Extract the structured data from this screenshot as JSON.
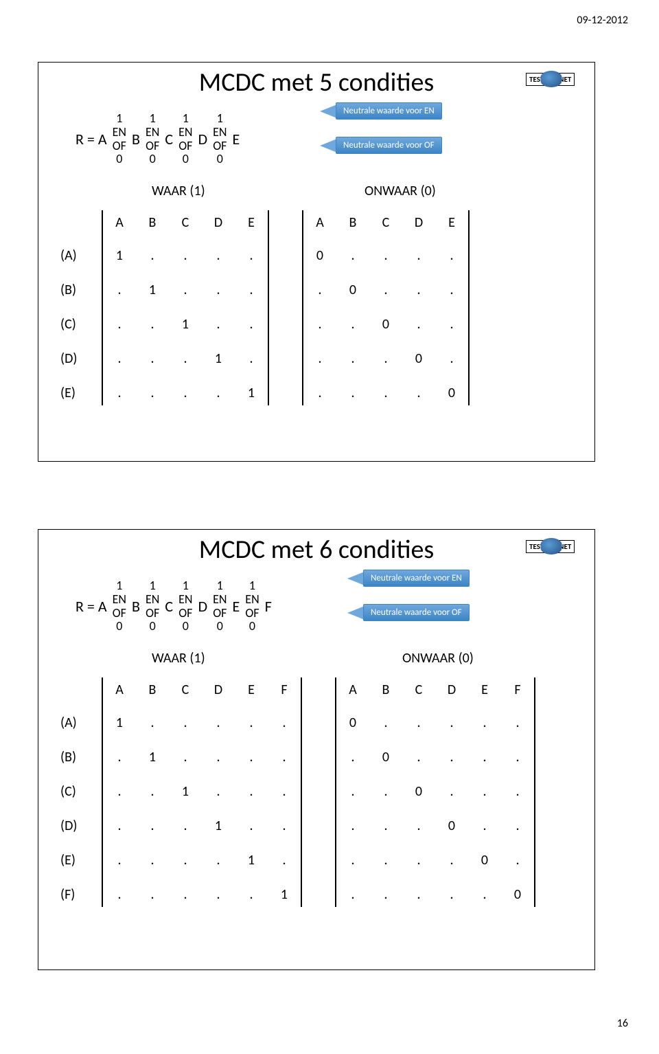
{
  "page": {
    "date": "09-12-2012",
    "number": "16"
  },
  "slide1": {
    "title": "MCDC met 5 condities",
    "formula_prefix": "R = A",
    "letters": [
      "B",
      "C",
      "D",
      "E"
    ],
    "op_rows": [
      "1",
      "EN",
      "OF",
      "0"
    ],
    "op_count": 4,
    "callout_en": "Neutrale waarde voor EN",
    "callout_of": "Neutrale waarde voor OF",
    "waar_label": "WAAR (1)",
    "onwaar_label": "ONWAAR (0)",
    "headers": [
      "A",
      "B",
      "C",
      "D",
      "E"
    ],
    "row_labels": [
      "(A)",
      "(B)",
      "(C)",
      "(D)",
      "(E)"
    ],
    "waar_rows": [
      [
        "1",
        ".",
        ".",
        ".",
        "."
      ],
      [
        ".",
        "1",
        ".",
        ".",
        "."
      ],
      [
        ".",
        ".",
        "1",
        ".",
        "."
      ],
      [
        ".",
        ".",
        ".",
        "1",
        "."
      ],
      [
        ".",
        ".",
        ".",
        ".",
        "1"
      ]
    ],
    "onwaar_rows": [
      [
        "0",
        ".",
        ".",
        ".",
        "."
      ],
      [
        ".",
        "0",
        ".",
        ".",
        "."
      ],
      [
        ".",
        ".",
        "0",
        ".",
        "."
      ],
      [
        ".",
        ".",
        ".",
        "0",
        "."
      ],
      [
        ".",
        ".",
        ".",
        ".",
        "0"
      ]
    ]
  },
  "slide2": {
    "title": "MCDC met 6 condities",
    "formula_prefix": "R = A",
    "letters": [
      "B",
      "C",
      "D",
      "E",
      "F"
    ],
    "op_rows": [
      "1",
      "EN",
      "OF",
      "0"
    ],
    "op_count": 5,
    "callout_en": "Neutrale waarde voor EN",
    "callout_of": "Neutrale waarde voor OF",
    "waar_label": "WAAR (1)",
    "onwaar_label": "ONWAAR (0)",
    "headers": [
      "A",
      "B",
      "C",
      "D",
      "E",
      "F"
    ],
    "row_labels": [
      "(A)",
      "(B)",
      "(C)",
      "(D)",
      "(E)",
      "(F)"
    ],
    "waar_rows": [
      [
        "1",
        ".",
        ".",
        ".",
        ".",
        "."
      ],
      [
        ".",
        "1",
        ".",
        ".",
        ".",
        "."
      ],
      [
        ".",
        ".",
        "1",
        ".",
        ".",
        "."
      ],
      [
        ".",
        ".",
        ".",
        "1",
        ".",
        "."
      ],
      [
        ".",
        ".",
        ".",
        ".",
        "1",
        "."
      ],
      [
        ".",
        ".",
        ".",
        ".",
        ".",
        "1"
      ]
    ],
    "onwaar_rows": [
      [
        "0",
        ".",
        ".",
        ".",
        ".",
        "."
      ],
      [
        ".",
        "0",
        ".",
        ".",
        ".",
        "."
      ],
      [
        ".",
        ".",
        "0",
        ".",
        ".",
        "."
      ],
      [
        ".",
        ".",
        ".",
        "0",
        ".",
        "."
      ],
      [
        ".",
        ".",
        ".",
        ".",
        "0",
        "."
      ],
      [
        ".",
        ".",
        ".",
        ".",
        ".",
        "0"
      ]
    ]
  },
  "logo": {
    "left": "TEST",
    "right": "NET"
  }
}
